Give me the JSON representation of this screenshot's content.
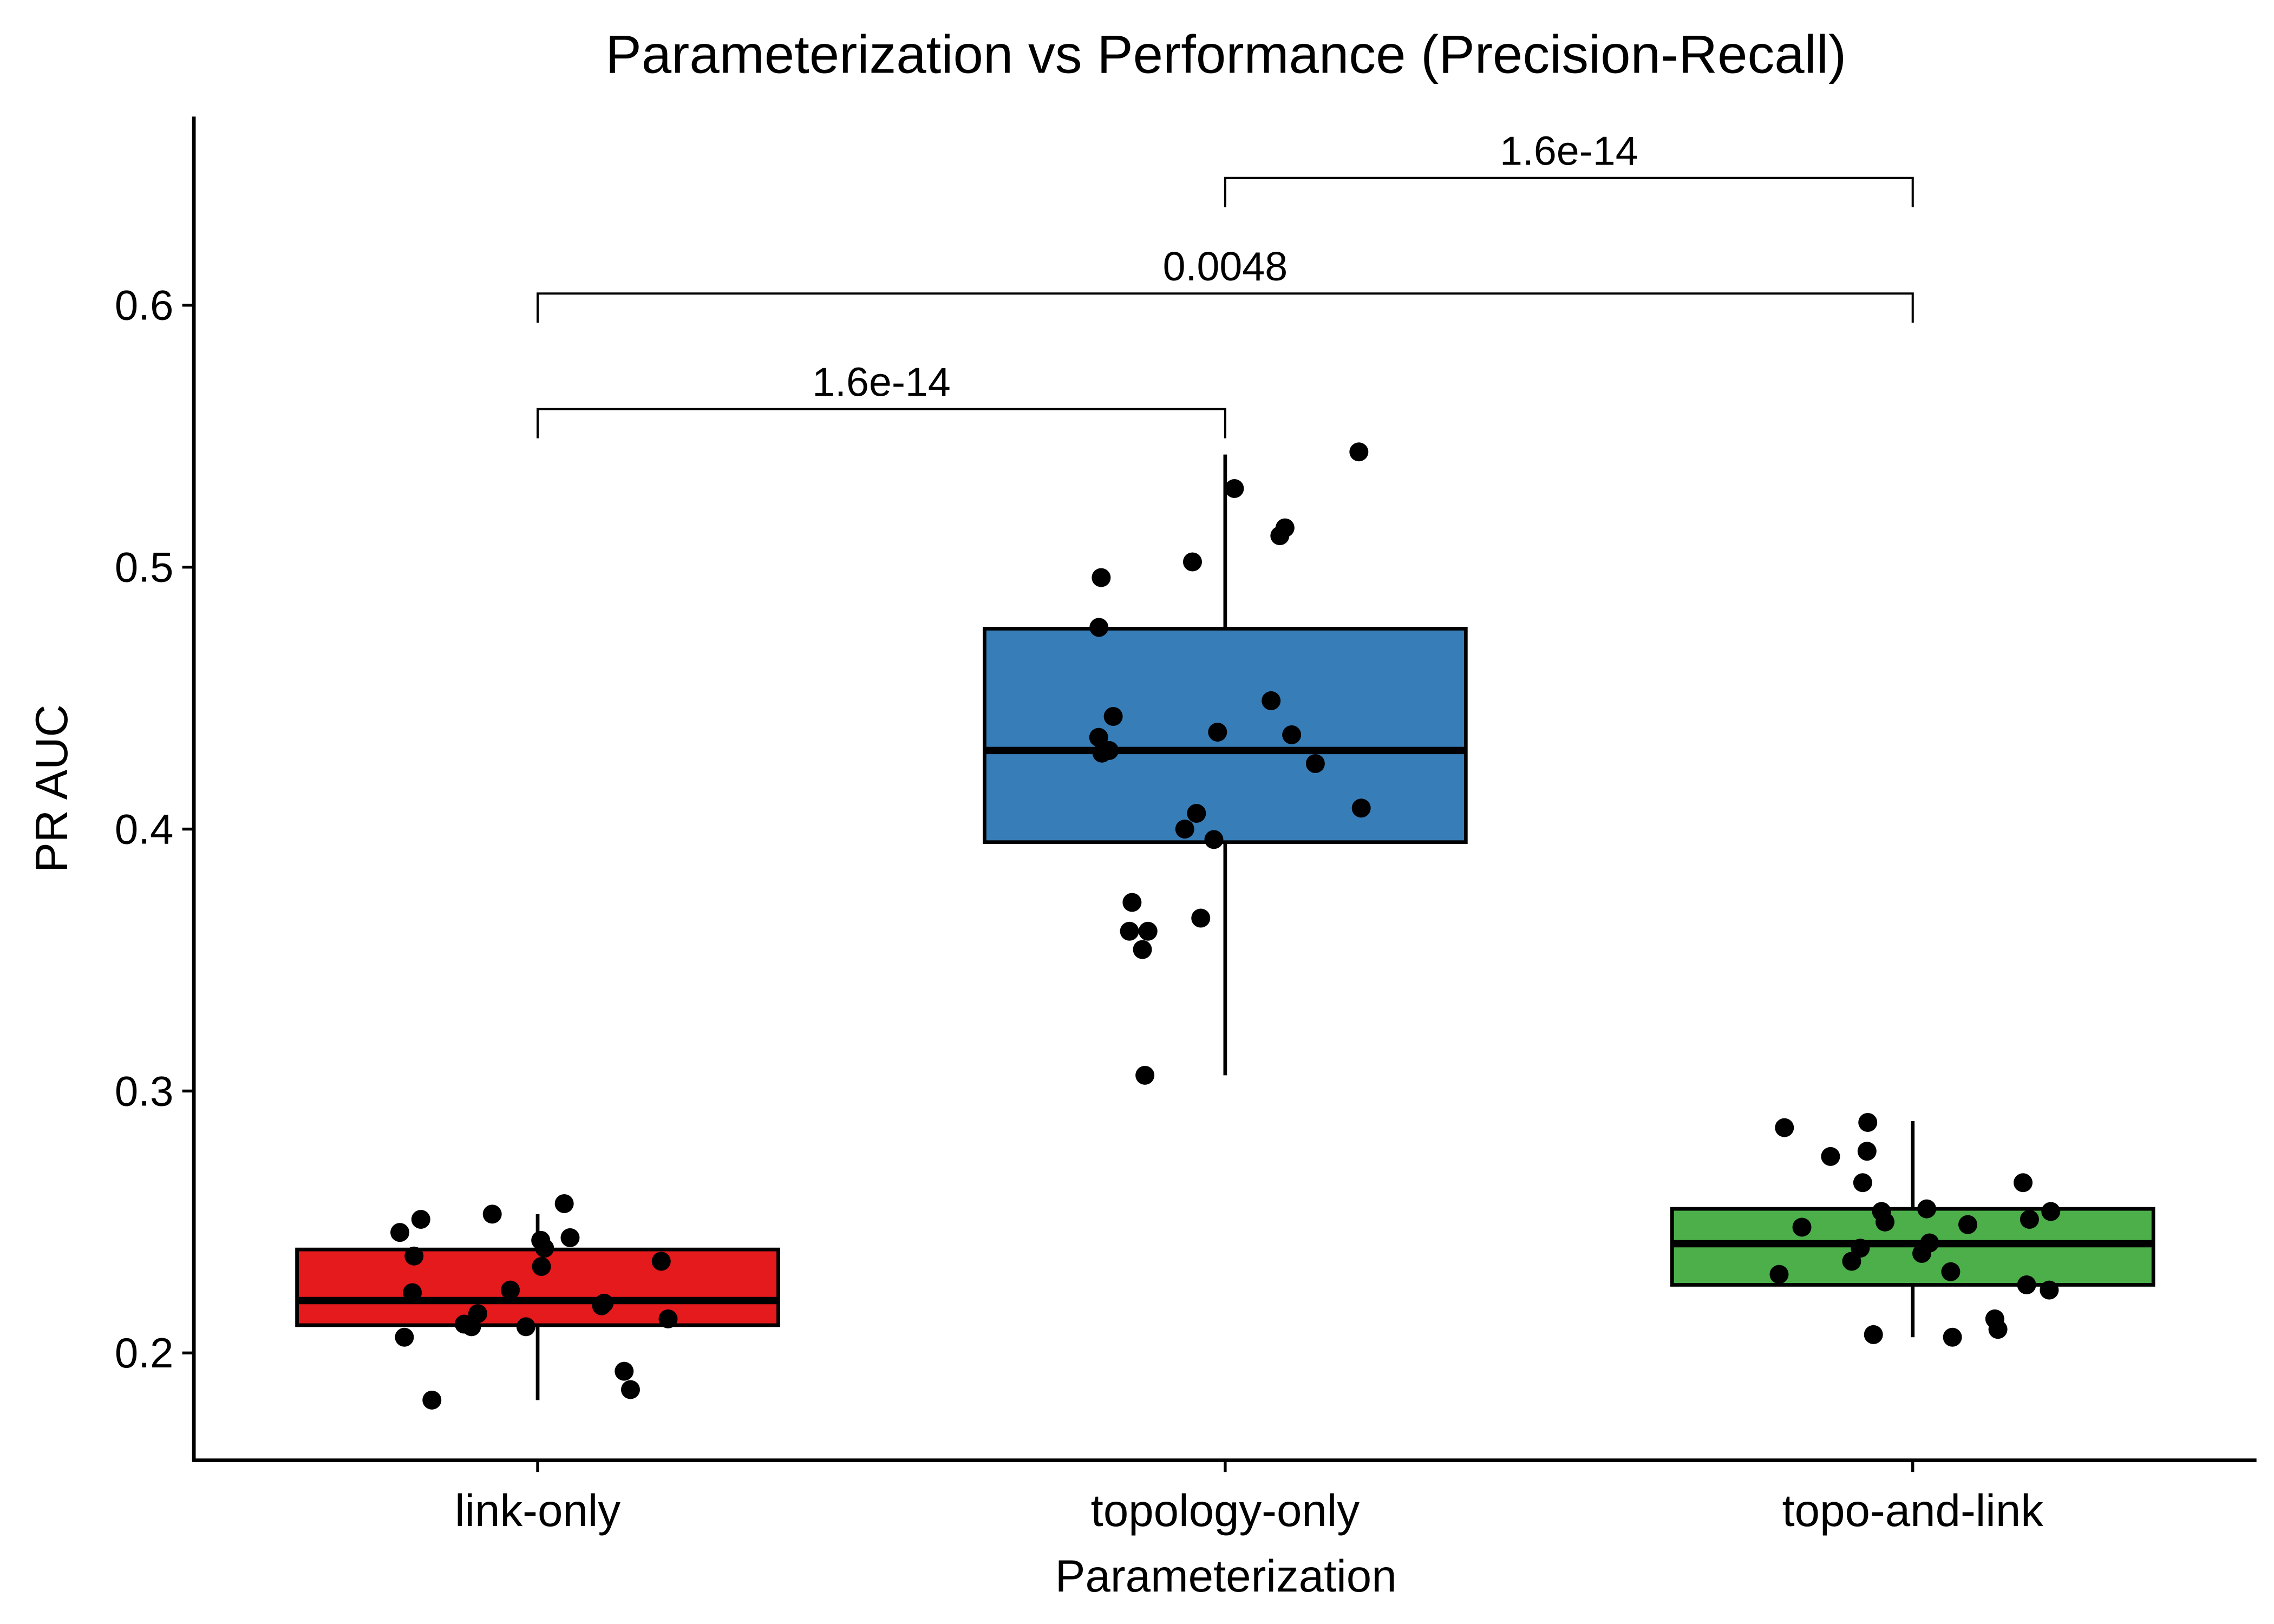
{
  "chart_data": {
    "type": "box",
    "title": "Parameterization vs Performance (Precision-Recall)",
    "x_label": "Parameterization",
    "y_label": "PR AUC",
    "categories": [
      "link-only",
      "topology-only",
      "topo-and-link"
    ],
    "ylim": [
      0.159,
      0.672
    ],
    "yticks": [
      0.2,
      0.3,
      0.4,
      0.5,
      0.6
    ],
    "grid": false,
    "series": [
      {
        "name": "link-only",
        "color": "#e41a1c",
        "whisker_low": 0.182,
        "q1": 0.2106,
        "median": 0.22,
        "q3": 0.2395,
        "whisker_high": 0.253,
        "points": [
          0.257,
          0.243,
          0.244,
          0.253,
          0.251,
          0.24,
          0.235,
          0.233,
          0.246,
          0.237,
          0.223,
          0.224,
          0.219,
          0.218,
          0.215,
          0.213,
          0.21,
          0.211,
          0.21,
          0.206,
          0.193,
          0.186,
          0.182
        ]
      },
      {
        "name": "topology-only",
        "color": "#377eb8",
        "whisker_low": 0.306,
        "q1": 0.395,
        "median": 0.43,
        "q3": 0.4765,
        "whisker_high": 0.543,
        "points": [
          0.544,
          0.53,
          0.515,
          0.512,
          0.502,
          0.496,
          0.477,
          0.449,
          0.443,
          0.436,
          0.437,
          0.435,
          0.43,
          0.429,
          0.425,
          0.408,
          0.406,
          0.4,
          0.396,
          0.372,
          0.366,
          0.361,
          0.361,
          0.354,
          0.306
        ]
      },
      {
        "name": "topo-and-link",
        "color": "#4daf4a",
        "whisker_low": 0.206,
        "q1": 0.226,
        "median": 0.2417,
        "q3": 0.255,
        "whisker_high": 0.2885,
        "points": [
          0.288,
          0.286,
          0.277,
          0.275,
          0.265,
          0.265,
          0.255,
          0.254,
          0.254,
          0.251,
          0.25,
          0.249,
          0.248,
          0.242,
          0.24,
          0.238,
          0.235,
          0.231,
          0.23,
          0.226,
          0.224,
          0.213,
          0.209,
          0.207,
          0.206
        ]
      }
    ],
    "comparisons": [
      {
        "groups": [
          "link-only",
          "topology-only"
        ],
        "label": "1.6e-14"
      },
      {
        "groups": [
          "link-only",
          "topo-and-link"
        ],
        "label": "0.0048"
      },
      {
        "groups": [
          "topology-only",
          "topo-and-link"
        ],
        "label": "1.6e-14"
      }
    ]
  }
}
